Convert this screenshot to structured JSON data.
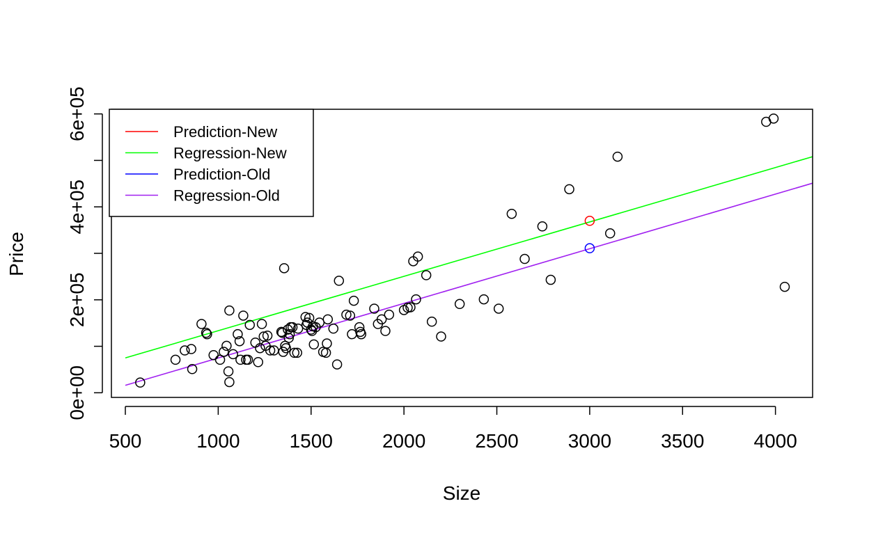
{
  "chart_data": {
    "type": "scatter",
    "title": "",
    "xlabel": "Size",
    "ylabel": "Price",
    "xlim": [
      425,
      4200
    ],
    "ylim": [
      -10000,
      610000
    ],
    "x_ticks": [
      500,
      1000,
      1500,
      2000,
      2500,
      3000,
      3500,
      4000
    ],
    "x_tick_labels": [
      "500",
      "1000",
      "1500",
      "2000",
      "2500",
      "3000",
      "3500",
      "4000"
    ],
    "y_ticks": [
      0,
      100000,
      200000,
      300000,
      400000,
      500000,
      600000
    ],
    "y_tick_labels": [
      "0e+00",
      "",
      "2e+05",
      "",
      "4e+05",
      "",
      "6e+05"
    ],
    "grid": false,
    "legend": {
      "placement": "top-left",
      "entries": [
        {
          "label": "Prediction-New",
          "color": "#ff0000"
        },
        {
          "label": "Regression-New",
          "color": "#00ff00"
        },
        {
          "label": "Prediction-Old",
          "color": "#0000ff"
        },
        {
          "label": "Regression-Old",
          "color": "#a020f0"
        }
      ]
    },
    "points": [
      [
        580,
        22000
      ],
      [
        770,
        71000
      ],
      [
        820,
        91000
      ],
      [
        855,
        94000
      ],
      [
        860,
        51000
      ],
      [
        910,
        148000
      ],
      [
        935,
        129000
      ],
      [
        940,
        126000
      ],
      [
        975,
        81000
      ],
      [
        1010,
        71000
      ],
      [
        1030,
        88000
      ],
      [
        1045,
        101000
      ],
      [
        1055,
        46000
      ],
      [
        1060,
        23000
      ],
      [
        1060,
        177000
      ],
      [
        1080,
        83000
      ],
      [
        1105,
        126000
      ],
      [
        1115,
        111000
      ],
      [
        1120,
        71000
      ],
      [
        1135,
        166000
      ],
      [
        1150,
        71000
      ],
      [
        1160,
        71000
      ],
      [
        1170,
        146000
      ],
      [
        1200,
        108000
      ],
      [
        1215,
        66000
      ],
      [
        1225,
        96000
      ],
      [
        1235,
        148000
      ],
      [
        1245,
        121000
      ],
      [
        1255,
        101000
      ],
      [
        1265,
        123000
      ],
      [
        1280,
        91000
      ],
      [
        1300,
        91000
      ],
      [
        1340,
        131000
      ],
      [
        1345,
        129000
      ],
      [
        1350,
        88000
      ],
      [
        1355,
        268000
      ],
      [
        1360,
        101000
      ],
      [
        1365,
        96000
      ],
      [
        1375,
        136000
      ],
      [
        1380,
        118000
      ],
      [
        1385,
        126000
      ],
      [
        1390,
        141000
      ],
      [
        1400,
        141000
      ],
      [
        1410,
        86000
      ],
      [
        1425,
        86000
      ],
      [
        1430,
        138000
      ],
      [
        1470,
        163000
      ],
      [
        1475,
        146000
      ],
      [
        1480,
        151000
      ],
      [
        1490,
        161000
      ],
      [
        1500,
        136000
      ],
      [
        1505,
        133000
      ],
      [
        1510,
        143000
      ],
      [
        1515,
        104000
      ],
      [
        1525,
        141000
      ],
      [
        1545,
        151000
      ],
      [
        1565,
        88000
      ],
      [
        1580,
        86000
      ],
      [
        1585,
        106000
      ],
      [
        1590,
        158000
      ],
      [
        1620,
        138000
      ],
      [
        1640,
        61000
      ],
      [
        1650,
        241000
      ],
      [
        1690,
        168000
      ],
      [
        1710,
        166000
      ],
      [
        1720,
        126000
      ],
      [
        1730,
        198000
      ],
      [
        1760,
        141000
      ],
      [
        1765,
        131000
      ],
      [
        1770,
        126000
      ],
      [
        1840,
        181000
      ],
      [
        1860,
        148000
      ],
      [
        1880,
        158000
      ],
      [
        1900,
        133000
      ],
      [
        1920,
        168000
      ],
      [
        2000,
        178000
      ],
      [
        2020,
        183000
      ],
      [
        2035,
        184000
      ],
      [
        2050,
        283000
      ],
      [
        2065,
        201000
      ],
      [
        2075,
        293000
      ],
      [
        2120,
        253000
      ],
      [
        2150,
        153000
      ],
      [
        2200,
        121000
      ],
      [
        2300,
        191000
      ],
      [
        2430,
        201000
      ],
      [
        2510,
        181000
      ],
      [
        2580,
        385000
      ],
      [
        2650,
        288000
      ],
      [
        2745,
        358000
      ],
      [
        2790,
        243000
      ],
      [
        2890,
        438000
      ],
      [
        3110,
        343000
      ],
      [
        3150,
        508000
      ],
      [
        3950,
        583000
      ],
      [
        3990,
        590000
      ],
      [
        4050,
        228000
      ]
    ],
    "regression_new": {
      "x": [
        500,
        4200
      ],
      "y": [
        75000,
        508000
      ],
      "color": "#00ff00"
    },
    "regression_old": {
      "x": [
        500,
        4200
      ],
      "y": [
        16000,
        451000
      ],
      "color": "#a020f0"
    },
    "prediction_new": {
      "x": 3000,
      "y": 370000,
      "color": "#ff0000"
    },
    "prediction_old": {
      "x": 3000,
      "y": 311000,
      "color": "#0000ff"
    }
  }
}
